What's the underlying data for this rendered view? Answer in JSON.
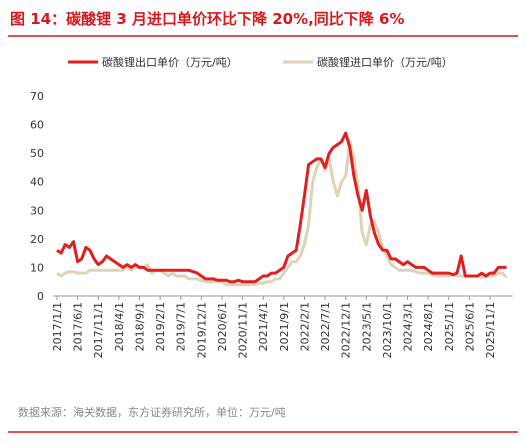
{
  "chart_data": {
    "type": "line",
    "title": "图 14：碳酸锂 3 月进口单价环比下降 20%,同比下降 6%",
    "source": "数据来源：海关数据，东方证券研究所，单位：万元/吨",
    "categories": [
      "2017/1/1",
      null,
      null,
      null,
      null,
      "2017/6/1",
      null,
      null,
      null,
      null,
      "2017/11/1",
      null,
      null,
      null,
      null,
      "2018/4/1",
      null,
      null,
      null,
      null,
      "2018/9/1",
      null,
      null,
      null,
      null,
      "2019/2/1",
      null,
      null,
      null,
      null,
      "2019/7/1",
      null,
      null,
      null,
      null,
      "2019/12/1",
      null,
      null,
      null,
      null,
      "2020/6/1",
      null,
      null,
      null,
      null,
      "2020/11/1",
      null,
      null,
      null,
      null,
      "2021/4/1",
      null,
      null,
      null,
      null,
      "2021/9/1",
      null,
      null,
      null,
      null,
      "2022/2/1",
      null,
      null,
      null,
      null,
      "2022/7/1",
      null,
      null,
      null,
      null,
      "2022/12/1",
      null,
      null,
      null,
      null,
      "2023/5/1",
      null,
      null,
      null,
      null,
      "2023/10/1",
      null,
      null,
      null,
      null,
      "2024/3/1",
      null,
      null,
      null,
      null,
      "2024/8/1",
      null,
      null,
      null,
      null,
      "2025/1/1",
      null,
      null,
      null,
      null,
      "2025/6/1",
      null,
      null,
      null,
      null,
      "2025/11/1",
      null,
      null,
      null,
      null
    ],
    "series": [
      {
        "name": "碳酸锂出口单价（万元/吨）",
        "color": "#e0201e",
        "values": [
          16,
          15,
          18,
          17,
          19,
          12,
          13,
          17,
          16,
          13,
          11,
          12,
          14,
          13,
          12,
          11,
          10,
          11,
          10,
          11,
          10,
          10,
          9,
          9,
          9,
          9,
          9,
          9,
          9,
          9,
          9,
          9,
          9,
          8.5,
          8,
          7,
          6,
          6,
          6,
          5.5,
          5.5,
          5.5,
          5,
          5,
          5.5,
          5,
          5,
          5,
          5,
          6,
          7,
          7,
          8,
          8,
          9,
          10,
          14,
          15,
          16,
          25,
          35,
          46,
          47,
          48,
          48,
          45,
          50,
          52,
          53,
          54,
          57,
          52,
          42,
          35,
          30,
          37,
          28,
          22,
          18,
          16,
          16,
          13,
          13,
          12,
          11,
          12,
          11,
          10,
          10,
          10,
          9,
          8,
          8,
          8,
          8,
          8,
          7.5,
          8,
          14,
          7,
          7,
          7,
          7,
          8,
          7,
          8,
          8,
          10,
          10,
          10
        ]
      },
      {
        "name": "碳酸锂进口单价（万元/吨）",
        "color": "#ddd3b8",
        "values": [
          8,
          7,
          8,
          8.5,
          8.5,
          8,
          8,
          8,
          9,
          9,
          9,
          9,
          9,
          9,
          9,
          9,
          9,
          10,
          9,
          10,
          10,
          10,
          11,
          8,
          9,
          9,
          8,
          7,
          8,
          7,
          7,
          7,
          6,
          6,
          6,
          5.5,
          5,
          5,
          5,
          5,
          5,
          4,
          4,
          4,
          4,
          4,
          4,
          4,
          4,
          4.5,
          4.5,
          5,
          5,
          6,
          6,
          8,
          10,
          12,
          12,
          14,
          18,
          25,
          40,
          45,
          48,
          44,
          48,
          40,
          35,
          40,
          42,
          54,
          48,
          38,
          22,
          18,
          25,
          26,
          22,
          17,
          14,
          11,
          10,
          9,
          9,
          9,
          9,
          8.5,
          8,
          8,
          8,
          7.5,
          7,
          7,
          7,
          7,
          7.5,
          7,
          7,
          7,
          7,
          7,
          7,
          6.5,
          7,
          7,
          7,
          8,
          8,
          6.5
        ]
      }
    ],
    "ylim": [
      0,
      70
    ],
    "yticks": [
      0,
      10,
      20,
      30,
      40,
      50,
      60,
      70
    ]
  }
}
